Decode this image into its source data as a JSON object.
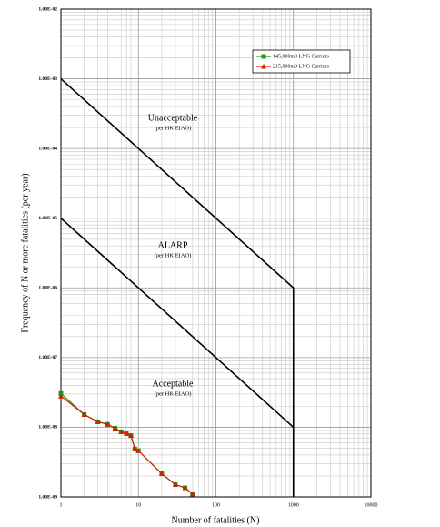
{
  "chart_data": {
    "type": "line",
    "x_label": "Number of fatalities (N)",
    "y_label": "Frequency of N or more fatalities (per year)",
    "log_x": true,
    "log_y": true,
    "grid": true,
    "minor_grid": true,
    "legend": "upper right",
    "xlim": [
      1,
      10000
    ],
    "xticks": [
      1,
      10,
      100,
      1000,
      10000
    ],
    "ylim": [
      1e-09,
      0.01
    ],
    "yticks": [
      {
        "value": 1e-09,
        "label": "1.00E-09"
      },
      {
        "value": 1e-08,
        "label": "1.00E-08"
      },
      {
        "value": 1e-07,
        "label": "1.00E-07"
      },
      {
        "value": 1e-06,
        "label": "1.00E-06"
      },
      {
        "value": 1e-05,
        "label": "1.00E-05"
      },
      {
        "value": 0.0001,
        "label": "1.00E-04"
      },
      {
        "value": 0.001,
        "label": "1.00E-03"
      },
      {
        "value": 0.01,
        "label": "1.00E-02"
      }
    ],
    "criteria_lines": [
      {
        "x": [
          1,
          1000,
          1000
        ],
        "y": [
          0.001,
          1e-06,
          1e-09
        ],
        "color": "#000000"
      },
      {
        "x": [
          1,
          1000,
          1000
        ],
        "y": [
          1e-05,
          1e-08,
          1e-09
        ],
        "color": "#000000"
      }
    ],
    "annotations": [
      {
        "text": "Unacceptable",
        "sub": "(per HK EIAO)"
      },
      {
        "text": "ALARP",
        "sub": "(per HK EIAO)"
      },
      {
        "text": "Acceptable",
        "sub": "(per HK EIAO)"
      }
    ],
    "series": [
      {
        "name": "145,000m3 LNG Carriers",
        "color": "#1a9a1a",
        "marker": "square",
        "x": [
          1,
          2,
          3,
          4,
          5,
          6,
          7,
          8,
          9,
          10,
          20,
          30,
          40,
          50
        ],
        "values": [
          3.05e-08,
          1.52e-08,
          1.2e-08,
          1.1e-08,
          9.7e-09,
          8.6e-09,
          8.1e-09,
          7.6e-09,
          4.9e-09,
          4.6e-09,
          2.15e-09,
          1.5e-09,
          1.35e-09,
          1.1e-09
        ]
      },
      {
        "name": "215,000m3 LNG Carriers",
        "color": "#cc2200",
        "marker": "triangle",
        "x": [
          1,
          2,
          3,
          4,
          5,
          6,
          7,
          8,
          9,
          10,
          20,
          30,
          40,
          50
        ],
        "values": [
          2.8e-08,
          1.52e-08,
          1.2e-08,
          1.1e-08,
          9.7e-09,
          8.6e-09,
          8.1e-09,
          7.6e-09,
          4.9e-09,
          4.6e-09,
          2.15e-09,
          1.5e-09,
          1.35e-09,
          1.1e-09
        ]
      }
    ]
  }
}
